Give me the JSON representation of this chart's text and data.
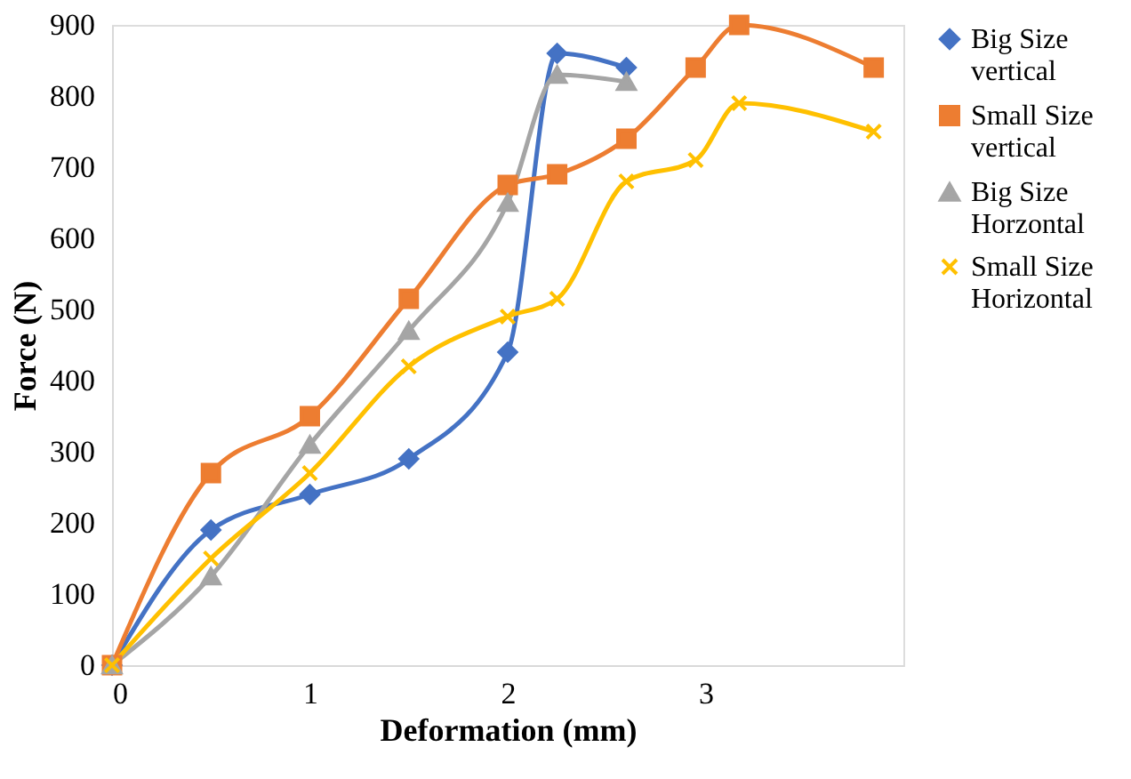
{
  "chart_data": {
    "type": "line",
    "xlabel": "Deformation (mm)",
    "ylabel": "Force (N)",
    "xlim": [
      0,
      4
    ],
    "xticks": [
      0,
      1,
      2,
      3
    ],
    "ylim": [
      0,
      900
    ],
    "yticks": [
      0,
      100,
      200,
      300,
      400,
      500,
      600,
      700,
      800,
      900
    ],
    "grid": false,
    "legend": "right",
    "line_style": "solid",
    "series": [
      {
        "name": "Big Size vertical",
        "color": "#4472c4",
        "marker": "diamond",
        "x": [
          0,
          0.5,
          1,
          1.5,
          2,
          2.25,
          2.6
        ],
        "values": [
          0,
          190,
          240,
          290,
          440,
          860,
          840
        ]
      },
      {
        "name": "Small Size vertical",
        "color": "#ed7d31",
        "marker": "square",
        "x": [
          0,
          0.5,
          1,
          1.5,
          2,
          2.25,
          2.6,
          2.95,
          3.17,
          3.85
        ],
        "values": [
          0,
          270,
          350,
          515,
          675,
          690,
          740,
          840,
          900,
          840
        ]
      },
      {
        "name": "Big Size Horzontal",
        "color": "#a5a5a5",
        "marker": "triangle",
        "x": [
          0,
          0.5,
          1,
          1.5,
          2,
          2.25,
          2.6
        ],
        "values": [
          0,
          125,
          310,
          470,
          650,
          830,
          820
        ]
      },
      {
        "name": "Small Size Horizontal",
        "color": "#ffc000",
        "marker": "cross",
        "x": [
          0,
          0.5,
          1,
          1.5,
          2,
          2.25,
          2.6,
          2.95,
          3.17,
          3.85
        ],
        "values": [
          0,
          150,
          270,
          420,
          490,
          515,
          680,
          710,
          790,
          750
        ]
      }
    ]
  }
}
